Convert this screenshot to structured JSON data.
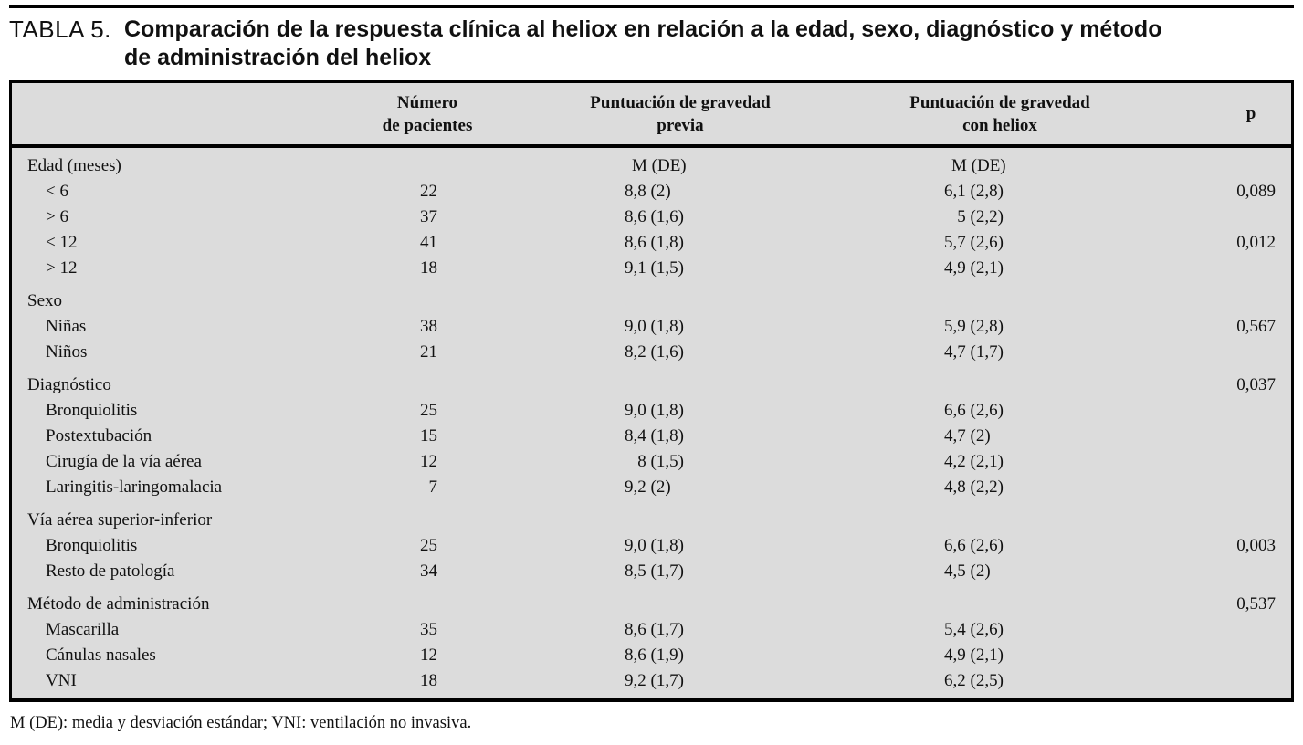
{
  "title": {
    "label": "TABLA 5.",
    "line1": "Comparación de la respuesta clínica al heliox en relación a la edad, sexo, diagnóstico y método",
    "line2": "de administración del heliox"
  },
  "columns": {
    "patients_line1": "Número",
    "patients_line2": "de pacientes",
    "prev_line1": "Puntuación de gravedad",
    "prev_line2": "previa",
    "heliox_line1": "Puntuación de gravedad",
    "heliox_line2": "con heliox",
    "p": "p"
  },
  "rows": [
    {
      "type": "section",
      "label": "Edad (meses)",
      "n": "",
      "prev": "M (DE)",
      "heliox": "M (DE)",
      "p": ""
    },
    {
      "type": "item",
      "label": "< 6",
      "n": "22",
      "prev": "8,8 (2)",
      "heliox": "6,1 (2,8)",
      "p": "0,089"
    },
    {
      "type": "item",
      "label": "> 6",
      "n": "37",
      "prev": "8,6 (1,6)",
      "heliox": "  5 (2,2)",
      "p": ""
    },
    {
      "type": "item",
      "label": "< 12",
      "n": "41",
      "prev": "8,6 (1,8)",
      "heliox": "5,7 (2,6)",
      "p": "0,012"
    },
    {
      "type": "item",
      "label": "> 12",
      "n": "18",
      "prev": "9,1 (1,5)",
      "heliox": "4,9 (2,1)",
      "p": ""
    },
    {
      "type": "section",
      "label": "Sexo",
      "n": "",
      "prev": "",
      "heliox": "",
      "p": ""
    },
    {
      "type": "item",
      "label": "Niñas",
      "n": "38",
      "prev": "9,0 (1,8)",
      "heliox": "5,9 (2,8)",
      "p": "0,567"
    },
    {
      "type": "item",
      "label": "Niños",
      "n": "21",
      "prev": "8,2 (1,6)",
      "heliox": "4,7 (1,7)",
      "p": ""
    },
    {
      "type": "section",
      "label": "Diagnóstico",
      "n": "",
      "prev": "",
      "heliox": "",
      "p": "0,037"
    },
    {
      "type": "item",
      "label": "Bronquiolitis",
      "n": "25",
      "prev": "9,0 (1,8)",
      "heliox": "6,6 (2,6)",
      "p": ""
    },
    {
      "type": "item",
      "label": "Postextubación",
      "n": "15",
      "prev": "8,4 (1,8)",
      "heliox": "4,7 (2)",
      "p": ""
    },
    {
      "type": "item",
      "label": "Cirugía de la vía aérea",
      "n": "12",
      "prev": "  8 (1,5)",
      "heliox": "4,2 (2,1)",
      "p": ""
    },
    {
      "type": "item",
      "label": "Laringitis-laringomalacia",
      "n": "7",
      "prev": "9,2 (2)",
      "heliox": "4,8 (2,2)",
      "p": ""
    },
    {
      "type": "section",
      "label": "Vía aérea superior-inferior",
      "n": "",
      "prev": "",
      "heliox": "",
      "p": ""
    },
    {
      "type": "item",
      "label": "Bronquiolitis",
      "n": "25",
      "prev": "9,0 (1,8)",
      "heliox": "6,6 (2,6)",
      "p": "0,003"
    },
    {
      "type": "item",
      "label": "Resto de patología",
      "n": "34",
      "prev": "8,5 (1,7)",
      "heliox": "4,5 (2)",
      "p": ""
    },
    {
      "type": "section",
      "label": "Método de administración",
      "n": "",
      "prev": "",
      "heliox": "",
      "p": "0,537"
    },
    {
      "type": "item",
      "label": "Mascarilla",
      "n": "35",
      "prev": "8,6 (1,7)",
      "heliox": "5,4 (2,6)",
      "p": ""
    },
    {
      "type": "item",
      "label": "Cánulas nasales",
      "n": "12",
      "prev": "8,6 (1,9)",
      "heliox": "4,9 (2,1)",
      "p": ""
    },
    {
      "type": "item",
      "label": "VNI",
      "n": "18",
      "prev": "9,2 (1,7)",
      "heliox": "6,2 (2,5)",
      "p": ""
    }
  ],
  "footnote": "M (DE): media y desviación estándar; VNI: ventilación no invasiva.",
  "colors": {
    "table_background": "#dcdcdc",
    "border": "#000000",
    "text": "#111111",
    "page_background": "#ffffff"
  }
}
